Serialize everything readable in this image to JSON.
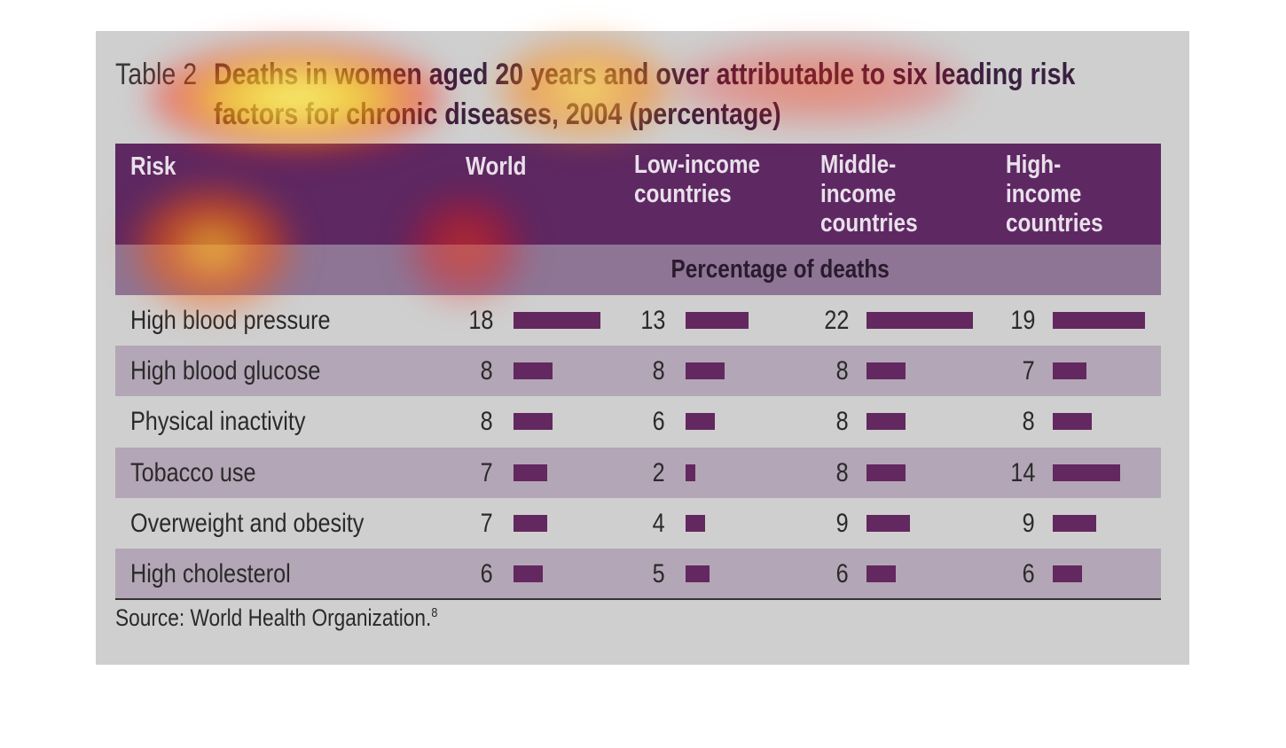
{
  "table_label": "Table 2",
  "title": "Deaths in women aged 20 years and over attributable to six leading risk factors for chronic diseases, 2004 (percentage)",
  "table": {
    "columns": [
      "Risk",
      "World",
      "Low-income countries",
      "Middle-income countries",
      "High-income countries"
    ],
    "subheader": "Percentage of deaths",
    "rows": [
      {
        "risk": "High blood pressure",
        "values": [
          18,
          13,
          22,
          19
        ]
      },
      {
        "risk": "High blood glucose",
        "values": [
          8,
          8,
          8,
          7
        ]
      },
      {
        "risk": "Physical inactivity",
        "values": [
          8,
          6,
          8,
          8
        ]
      },
      {
        "risk": "Tobacco use",
        "values": [
          7,
          2,
          8,
          14
        ]
      },
      {
        "risk": "Overweight and obesity",
        "values": [
          7,
          4,
          9,
          9
        ]
      },
      {
        "risk": "High cholesterol",
        "values": [
          6,
          5,
          6,
          6
        ]
      }
    ]
  },
  "source": "Source: World Health Organization.",
  "source_note": "8"
}
